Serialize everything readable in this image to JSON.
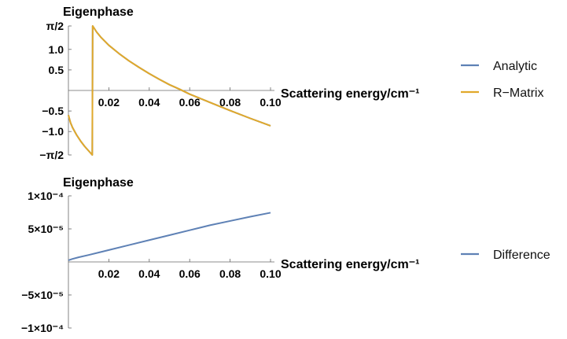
{
  "chart_data": [
    {
      "type": "line",
      "ylabel": "Eigenphase",
      "xlabel": "Scattering energy/cm⁻¹",
      "xlim": [
        0.0,
        0.1
      ],
      "ylim": [
        -1.5708,
        1.5708
      ],
      "xticks": [
        {
          "v": 0.02,
          "label": "0.02"
        },
        {
          "v": 0.04,
          "label": "0.04"
        },
        {
          "v": 0.06,
          "label": "0.06"
        },
        {
          "v": 0.08,
          "label": "0.08"
        },
        {
          "v": 0.1,
          "label": "0.10"
        }
      ],
      "yticks": [
        {
          "v": 1.5708,
          "label": "π/2"
        },
        {
          "v": 1.0,
          "label": "1.0"
        },
        {
          "v": 0.5,
          "label": "0.5"
        },
        {
          "v": -0.5,
          "label": "−0.5"
        },
        {
          "v": -1.0,
          "label": "−1.0"
        },
        {
          "v": -1.5708,
          "label": "−π/2"
        }
      ],
      "series": [
        {
          "name": "Analytic",
          "color": "#5E81B5",
          "x": [
            0.0,
            0.001,
            0.002,
            0.004,
            0.006,
            0.008,
            0.01,
            0.0118,
            0.012,
            0.014,
            0.016,
            0.02,
            0.025,
            0.03,
            0.035,
            0.04,
            0.045,
            0.05,
            0.055,
            0.06,
            0.07,
            0.08,
            0.09,
            0.1
          ],
          "y": [
            -0.6,
            -0.78,
            -0.9,
            -1.08,
            -1.23,
            -1.36,
            -1.47,
            -1.5708,
            1.5708,
            1.42,
            1.3,
            1.1,
            0.9,
            0.72,
            0.56,
            0.41,
            0.27,
            0.14,
            0.03,
            -0.09,
            -0.29,
            -0.49,
            -0.68,
            -0.86
          ]
        },
        {
          "name": "R−Matrix",
          "color": "#E1A92B",
          "x": [
            0.0,
            0.001,
            0.002,
            0.004,
            0.006,
            0.008,
            0.01,
            0.0118,
            0.012,
            0.014,
            0.016,
            0.02,
            0.025,
            0.03,
            0.035,
            0.04,
            0.045,
            0.05,
            0.055,
            0.06,
            0.07,
            0.08,
            0.09,
            0.1
          ],
          "y": [
            -0.6,
            -0.78,
            -0.9,
            -1.08,
            -1.23,
            -1.36,
            -1.47,
            -1.5708,
            1.5708,
            1.42,
            1.3,
            1.1,
            0.9,
            0.72,
            0.56,
            0.41,
            0.27,
            0.14,
            0.03,
            -0.09,
            -0.29,
            -0.49,
            -0.68,
            -0.86
          ]
        }
      ]
    },
    {
      "type": "line",
      "ylabel": "Eigenphase",
      "xlabel": "Scattering energy/cm⁻¹",
      "xlim": [
        0.0,
        0.1
      ],
      "ylim": [
        -0.0001,
        0.0001
      ],
      "xticks": [
        {
          "v": 0.02,
          "label": "0.02"
        },
        {
          "v": 0.04,
          "label": "0.04"
        },
        {
          "v": 0.06,
          "label": "0.06"
        },
        {
          "v": 0.08,
          "label": "0.08"
        },
        {
          "v": 0.1,
          "label": "0.10"
        }
      ],
      "yticks": [
        {
          "v": 0.0001,
          "label": "1×10⁻⁴"
        },
        {
          "v": 5e-05,
          "label": "5×10⁻⁵"
        },
        {
          "v": -5e-05,
          "label": "−5×10⁻⁵"
        },
        {
          "v": -0.0001,
          "label": "−1×10⁻⁴"
        }
      ],
      "series": [
        {
          "name": "Difference",
          "color": "#5E81B5",
          "x": [
            0.0,
            0.002,
            0.005,
            0.01,
            0.02,
            0.03,
            0.04,
            0.05,
            0.06,
            0.07,
            0.08,
            0.09,
            0.1
          ],
          "y": [
            2.5e-06,
            4.5e-06,
            7e-06,
            1.05e-05,
            1.8e-05,
            2.55e-05,
            3.3e-05,
            4.05e-05,
            4.8e-05,
            5.55e-05,
            6.2e-05,
            6.85e-05,
            7.45e-05
          ]
        }
      ]
    }
  ]
}
